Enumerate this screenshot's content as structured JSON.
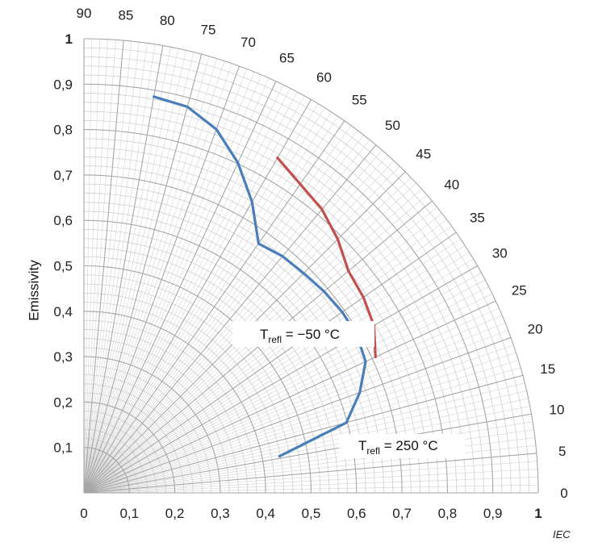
{
  "chart_data": {
    "type": "line",
    "coordinate_system": "polar-quadrant",
    "ylabel": "Emissivity",
    "radial_range": [
      0,
      1
    ],
    "angle_range_deg": [
      0,
      90
    ],
    "radial_ticks": [
      "0",
      "0,1",
      "0,2",
      "0,3",
      "0,4",
      "0,5",
      "0,6",
      "0,7",
      "0,8",
      "0,9",
      "1"
    ],
    "radial_tick_values": [
      0,
      0.1,
      0.2,
      0.3,
      0.4,
      0.5,
      0.6,
      0.7,
      0.8,
      0.9,
      1
    ],
    "angle_ticks": [
      "0",
      "5",
      "10",
      "15",
      "20",
      "25",
      "30",
      "35",
      "40",
      "45",
      "50",
      "55",
      "60",
      "65",
      "70",
      "75",
      "80",
      "85",
      "90"
    ],
    "angle_tick_values": [
      0,
      5,
      10,
      15,
      20,
      25,
      30,
      35,
      40,
      45,
      50,
      55,
      60,
      65,
      70,
      75,
      80,
      85,
      90
    ],
    "grid": true,
    "series": [
      {
        "color": "#4a7ebb",
        "points": [
          {
            "angle": 10.6,
            "emissivity": 0.438
          },
          {
            "angle": 15.0,
            "emissivity": 0.598
          },
          {
            "angle": 20.0,
            "emissivity": 0.646
          },
          {
            "angle": 25.0,
            "emissivity": 0.684
          },
          {
            "angle": 30.0,
            "emissivity": 0.694
          },
          {
            "angle": 35.0,
            "emissivity": 0.694
          },
          {
            "angle": 40.0,
            "emissivity": 0.69
          },
          {
            "angle": 45.0,
            "emissivity": 0.684
          },
          {
            "angle": 50.0,
            "emissivity": 0.68
          },
          {
            "angle": 55.0,
            "emissivity": 0.67
          },
          {
            "angle": 60.0,
            "emissivity": 0.74
          },
          {
            "angle": 65.0,
            "emissivity": 0.802
          },
          {
            "angle": 70.0,
            "emissivity": 0.852
          },
          {
            "angle": 75.0,
            "emissivity": 0.88
          },
          {
            "angle": 80.0,
            "emissivity": 0.886
          }
        ]
      },
      {
        "color": "#c0504d",
        "points": [
          {
            "angle": 25.0,
            "emissivity": 0.708
          },
          {
            "angle": 30.0,
            "emissivity": 0.737
          },
          {
            "angle": 35.0,
            "emissivity": 0.751
          },
          {
            "angle": 40.0,
            "emissivity": 0.76
          },
          {
            "angle": 45.0,
            "emissivity": 0.79
          },
          {
            "angle": 50.0,
            "emissivity": 0.815
          },
          {
            "angle": 55.0,
            "emissivity": 0.83
          },
          {
            "angle": 60.0,
            "emissivity": 0.852
          }
        ]
      }
    ],
    "annotations": [
      {
        "main": "T",
        "sub": "refl",
        "rest": " = −50 °C"
      },
      {
        "main": "T",
        "sub": "refl",
        "rest": " = 250 °C"
      }
    ]
  },
  "footer": {
    "mark": "IEC"
  }
}
